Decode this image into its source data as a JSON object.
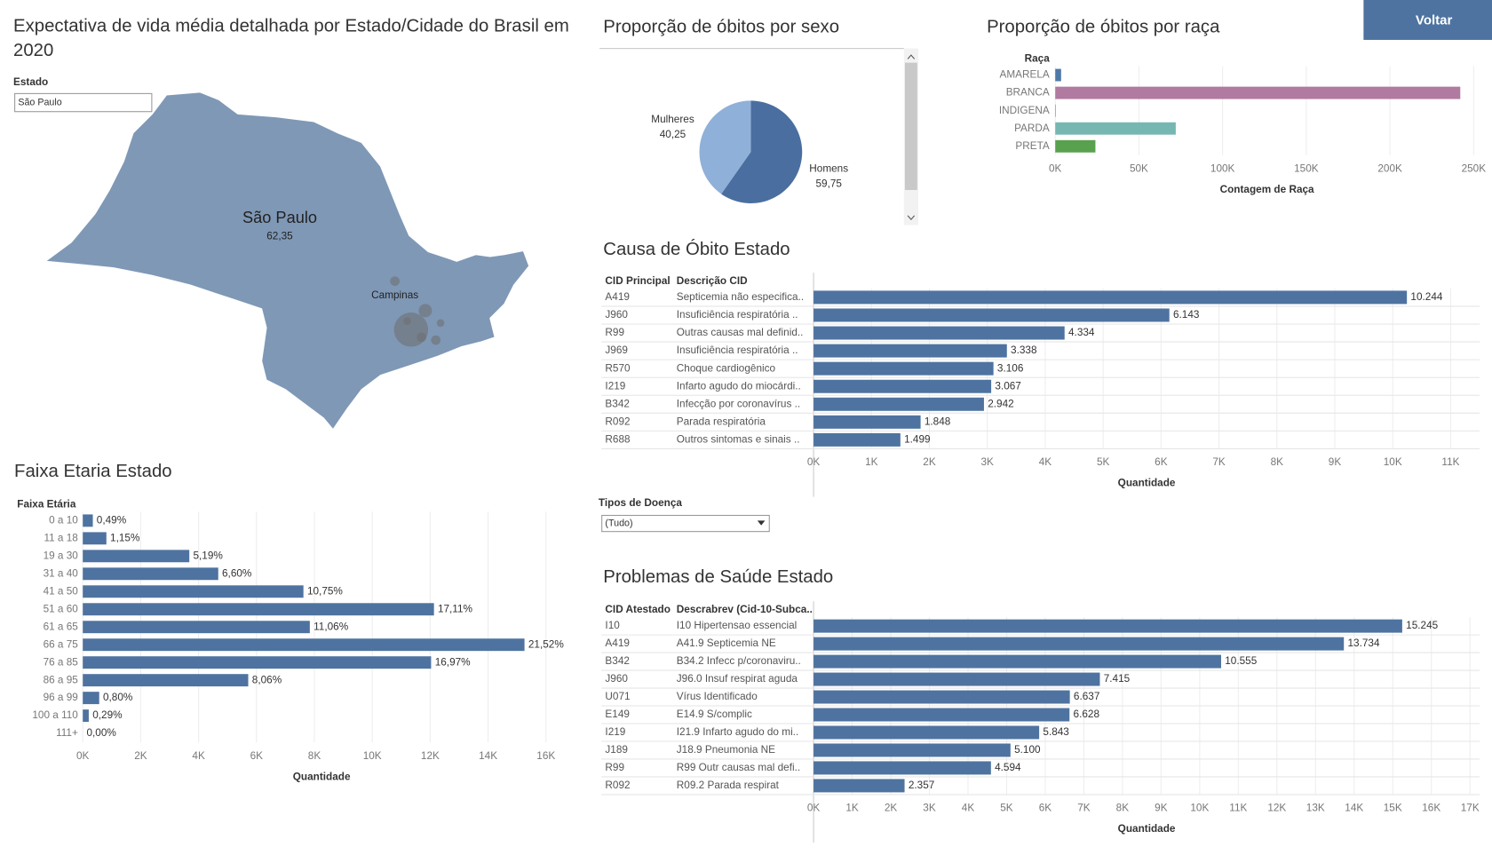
{
  "button": "Voltar",
  "map": {
    "title": "Expectativa de vida média detalhada por Estado/Cidade do Brasil em 2020",
    "filter_label": "Estado",
    "filter_value": "São Paulo",
    "state": "São Paulo",
    "state_value": "62,35",
    "city": "Campinas"
  },
  "disease_filter": {
    "label": "Tipos de Doença",
    "value": "(Tudo)"
  },
  "chart_data": [
    {
      "type": "pie",
      "title": "Proporção de óbitos por sexo",
      "categories": [
        "Homens",
        "Mulheres"
      ],
      "values": [
        59.75,
        40.25
      ],
      "value_labels": [
        "59,75",
        "40,25"
      ],
      "colors": [
        "#4a6e9f",
        "#8fb0d8"
      ]
    },
    {
      "type": "bar",
      "title": "Proporção de óbitos por raça",
      "y_label": "Raça",
      "x_label": "Contagem de Raça",
      "categories": [
        "AMARELA",
        "BRANCA",
        "INDIGENA",
        "PARDA",
        "PRETA"
      ],
      "values": [
        3500,
        242000,
        300,
        72000,
        24000
      ],
      "colors": [
        "#4e79a7",
        "#b07aa1",
        "#9c755f",
        "#76b7b2",
        "#59a14f"
      ],
      "xlim": [
        0,
        253000
      ],
      "xticks": [
        {
          "value": 0,
          "label": "0K"
        },
        {
          "value": 50000,
          "label": "50K"
        },
        {
          "value": 100000,
          "label": "100K"
        },
        {
          "value": 150000,
          "label": "150K"
        },
        {
          "value": 200000,
          "label": "200K"
        },
        {
          "value": 250000,
          "label": "250K"
        }
      ]
    },
    {
      "type": "bar",
      "title": "Causa de Óbito Estado",
      "columns": [
        "CID Principal",
        "Descrição CID"
      ],
      "x_label": "Quantidade",
      "categories": [
        "A419",
        "J960",
        "R99",
        "J969",
        "R570",
        "I219",
        "B342",
        "R092",
        "R688"
      ],
      "descriptions": [
        "Septicemia não especifica..",
        "Insuficiência respiratória ..",
        "Outras causas mal definid..",
        "Insuficiência respiratória ..",
        "Choque cardiogênico",
        "Infarto agudo do miocárdi..",
        "Infecção por coronavírus ..",
        "Parada respiratória",
        "Outros sintomas e sinais .."
      ],
      "values": [
        10244,
        6143,
        4334,
        3338,
        3106,
        3067,
        2942,
        1848,
        1499
      ],
      "value_labels": [
        "10.244",
        "6.143",
        "4.334",
        "3.338",
        "3.106",
        "3.067",
        "2.942",
        "1.848",
        "1.499"
      ],
      "color": "#4e73a0",
      "xlim": [
        0,
        11500
      ],
      "xticks": [
        {
          "value": 0,
          "label": "0K"
        },
        {
          "value": 1000,
          "label": "1K"
        },
        {
          "value": 2000,
          "label": "2K"
        },
        {
          "value": 3000,
          "label": "3K"
        },
        {
          "value": 4000,
          "label": "4K"
        },
        {
          "value": 5000,
          "label": "5K"
        },
        {
          "value": 6000,
          "label": "6K"
        },
        {
          "value": 7000,
          "label": "7K"
        },
        {
          "value": 8000,
          "label": "8K"
        },
        {
          "value": 9000,
          "label": "9K"
        },
        {
          "value": 10000,
          "label": "10K"
        },
        {
          "value": 11000,
          "label": "11K"
        }
      ]
    },
    {
      "type": "bar",
      "title": "Faixa Etaria Estado",
      "y_label": "Faixa Etária",
      "x_label": "Quantidade",
      "categories": [
        "0 a 10",
        "11 a 18",
        "19 a 30",
        "31 a 40",
        "41 a 50",
        "51 a 60",
        "61 a 65",
        "66 a 75",
        "76 a 85",
        "86 a 95",
        "96 a 99",
        "100 a 110",
        "111+"
      ],
      "values": [
        347,
        815,
        3680,
        4679,
        7622,
        12131,
        7842,
        15258,
        12032,
        5715,
        567,
        206,
        0
      ],
      "share_labels": [
        "0,49%",
        "1,15%",
        "5,19%",
        "6,60%",
        "10,75%",
        "17,11%",
        "11,06%",
        "21,52%",
        "16,97%",
        "8,06%",
        "0,80%",
        "0,29%",
        "0,00%"
      ],
      "color": "#4e73a0",
      "xlim": [
        0,
        16500
      ],
      "xticks": [
        {
          "value": 0,
          "label": "0K"
        },
        {
          "value": 2000,
          "label": "2K"
        },
        {
          "value": 4000,
          "label": "4K"
        },
        {
          "value": 6000,
          "label": "6K"
        },
        {
          "value": 8000,
          "label": "8K"
        },
        {
          "value": 10000,
          "label": "10K"
        },
        {
          "value": 12000,
          "label": "12K"
        },
        {
          "value": 14000,
          "label": "14K"
        },
        {
          "value": 16000,
          "label": "16K"
        }
      ]
    },
    {
      "type": "bar",
      "title": "Problemas de Saúde Estado",
      "columns": [
        "CID Atestado",
        "Descrabrev (Cid-10-Subca.."
      ],
      "x_label": "Quantidade",
      "categories": [
        "I10",
        "A419",
        "B342",
        "J960",
        "U071",
        "E149",
        "I219",
        "J189",
        "R99",
        "R092"
      ],
      "descriptions": [
        "I10  Hipertensao essencial",
        "A41.9 Septicemia NE",
        "B34.2 Infecc p/coronaviru..",
        "J96.0 Insuf respirat aguda",
        "Vírus Identificado",
        "E14.9 S/complic",
        "I21.9 Infarto agudo do mi..",
        "J18.9 Pneumonia NE",
        "R99  Outr causas mal defi..",
        "R09.2 Parada respirat"
      ],
      "values": [
        15245,
        13734,
        10555,
        7415,
        6637,
        6628,
        5843,
        5100,
        4594,
        2357
      ],
      "value_labels": [
        "15.245",
        "13.734",
        "10.555",
        "7.415",
        "6.637",
        "6.628",
        "5.843",
        "5.100",
        "4.594",
        "2.357"
      ],
      "color": "#4e73a0",
      "xlim": [
        0,
        17250
      ],
      "xticks": [
        {
          "value": 0,
          "label": "0K"
        },
        {
          "value": 1000,
          "label": "1K"
        },
        {
          "value": 2000,
          "label": "2K"
        },
        {
          "value": 3000,
          "label": "3K"
        },
        {
          "value": 4000,
          "label": "4K"
        },
        {
          "value": 5000,
          "label": "5K"
        },
        {
          "value": 6000,
          "label": "6K"
        },
        {
          "value": 7000,
          "label": "7K"
        },
        {
          "value": 8000,
          "label": "8K"
        },
        {
          "value": 9000,
          "label": "9K"
        },
        {
          "value": 10000,
          "label": "10K"
        },
        {
          "value": 11000,
          "label": "11K"
        },
        {
          "value": 12000,
          "label": "12K"
        },
        {
          "value": 13000,
          "label": "13K"
        },
        {
          "value": 14000,
          "label": "14K"
        },
        {
          "value": 15000,
          "label": "15K"
        },
        {
          "value": 16000,
          "label": "16K"
        },
        {
          "value": 17000,
          "label": "17K"
        }
      ]
    }
  ]
}
